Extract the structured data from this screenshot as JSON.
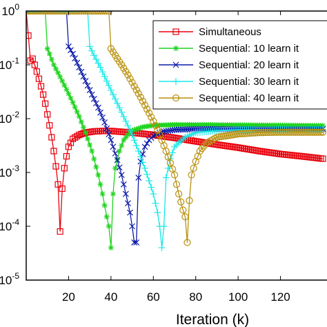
{
  "chart_data": {
    "type": "line",
    "xlabel": "Iteration (k)",
    "ylabel": "",
    "xlim": [
      0,
      140
    ],
    "ylim": [
      1e-05,
      1
    ],
    "yscale": "log",
    "x_ticks": [
      20,
      40,
      60,
      80,
      100,
      120
    ],
    "x_tick_labels": [
      "20",
      "40",
      "60",
      "80",
      "100",
      "120"
    ],
    "y_ticks": [
      1,
      0.1,
      0.01,
      0.001,
      0.0001,
      1e-05
    ],
    "y_tick_labels": [
      {
        "base": "10",
        "exp": "0"
      },
      {
        "base": "10",
        "exp": "-1"
      },
      {
        "base": "10",
        "exp": "-2"
      },
      {
        "base": "10",
        "exp": "-3"
      },
      {
        "base": "10",
        "exp": "-4"
      },
      {
        "base": "10",
        "exp": "-5"
      }
    ],
    "grid": false,
    "legend_position": "top-right",
    "series": [
      {
        "name": "Simultaneous",
        "color": "#e8000b",
        "marker": "square",
        "x": [
          0,
          1,
          2,
          3,
          4,
          5,
          6,
          7,
          8,
          9,
          10,
          11,
          12,
          13,
          14,
          15,
          16,
          17,
          18,
          19,
          20,
          22,
          25,
          28,
          32,
          36,
          40,
          50,
          60,
          70,
          80,
          90,
          100,
          110,
          120,
          130,
          140
        ],
        "y": [
          1,
          0.35,
          0.12,
          0.13,
          0.1,
          0.075,
          0.055,
          0.04,
          0.028,
          0.019,
          0.012,
          0.0075,
          0.0045,
          0.0025,
          0.0013,
          0.0006,
          8e-05,
          0.0005,
          0.0012,
          0.002,
          0.003,
          0.0042,
          0.005,
          0.0055,
          0.0058,
          0.0059,
          0.0059,
          0.0055,
          0.005,
          0.0044,
          0.0038,
          0.0033,
          0.0029,
          0.0025,
          0.0022,
          0.002,
          0.0018
        ]
      },
      {
        "name": "Sequential: 10 learn it",
        "color": "#1fd31f",
        "marker": "star",
        "x": [
          0,
          5,
          9,
          10,
          11,
          13,
          16,
          19,
          22,
          25,
          28,
          31,
          34,
          36,
          38,
          39,
          40,
          41,
          42,
          44,
          46,
          48,
          50,
          55,
          60,
          70,
          80,
          100,
          120,
          140
        ],
        "y": [
          1,
          1,
          1,
          0.2,
          0.16,
          0.1,
          0.06,
          0.035,
          0.02,
          0.011,
          0.0055,
          0.0025,
          0.0009,
          0.0004,
          0.00015,
          0.0001,
          4e-05,
          0.0004,
          0.0012,
          0.0025,
          0.004,
          0.005,
          0.006,
          0.007,
          0.0075,
          0.0077,
          0.0077,
          0.0076,
          0.0075,
          0.0074
        ]
      },
      {
        "name": "Sequential: 20 learn it",
        "color": "#0a1aa8",
        "marker": "x",
        "x": [
          0,
          10,
          19,
          20,
          22,
          25,
          28,
          31,
          34,
          37,
          40,
          43,
          45,
          47,
          49,
          50,
          51,
          52,
          53,
          54,
          56,
          58,
          60,
          65,
          70,
          80,
          100,
          120,
          140
        ],
        "y": [
          1,
          1,
          1,
          0.22,
          0.16,
          0.09,
          0.05,
          0.028,
          0.016,
          0.0085,
          0.004,
          0.0017,
          0.0009,
          0.0004,
          0.00018,
          0.0001,
          5e-05,
          5e-05,
          0.0008,
          0.0016,
          0.003,
          0.004,
          0.0048,
          0.0058,
          0.0062,
          0.0064,
          0.0064,
          0.0064,
          0.0064
        ]
      },
      {
        "name": "Sequential: 30 learn it",
        "color": "#17e8e8",
        "marker": "plus",
        "x": [
          0,
          20,
          29,
          30,
          32,
          35,
          38,
          41,
          44,
          47,
          50,
          53,
          56,
          58,
          60,
          62,
          63,
          64,
          65,
          66,
          68,
          70,
          75,
          80,
          90,
          100,
          120,
          140
        ],
        "y": [
          1,
          1,
          1,
          0.22,
          0.15,
          0.09,
          0.05,
          0.028,
          0.016,
          0.009,
          0.005,
          0.0025,
          0.0012,
          0.0007,
          0.0004,
          0.00018,
          0.0001,
          4e-05,
          0.0001,
          0.0008,
          0.0018,
          0.003,
          0.0045,
          0.0055,
          0.006,
          0.0062,
          0.0063,
          0.0063
        ]
      },
      {
        "name": "Sequential: 40 learn it",
        "color": "#b8900c",
        "marker": "circle",
        "x": [
          0,
          20,
          39,
          40,
          42,
          45,
          48,
          51,
          54,
          57,
          60,
          63,
          66,
          68,
          70,
          72,
          74,
          75,
          76,
          77,
          78,
          80,
          82,
          85,
          90,
          100,
          110,
          120,
          130,
          140
        ],
        "y": [
          1,
          1,
          1,
          0.2,
          0.15,
          0.1,
          0.065,
          0.04,
          0.025,
          0.015,
          0.009,
          0.005,
          0.0025,
          0.0015,
          0.0009,
          0.0004,
          0.0002,
          0.00015,
          5e-05,
          0.0003,
          0.0009,
          0.0016,
          0.0025,
          0.0035,
          0.0045,
          0.0052,
          0.0055,
          0.0056,
          0.0056,
          0.0056
        ]
      }
    ]
  }
}
